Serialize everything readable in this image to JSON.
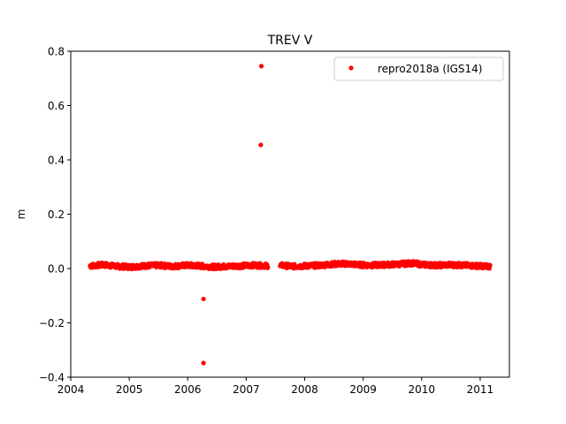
{
  "chart_data": {
    "type": "scatter",
    "title": "TREV V",
    "xlabel": "",
    "ylabel": "m",
    "xlim": [
      2004.0,
      2011.5
    ],
    "ylim": [
      -0.4,
      0.8
    ],
    "x_ticks": [
      2004,
      2005,
      2006,
      2007,
      2008,
      2009,
      2010,
      2011
    ],
    "x_tick_labels": [
      "2004",
      "2005",
      "2006",
      "2007",
      "2008",
      "2009",
      "2010",
      "2011"
    ],
    "y_ticks": [
      -0.4,
      -0.2,
      0.0,
      0.2,
      0.4,
      0.6,
      0.8
    ],
    "y_tick_labels": [
      "−0.4",
      "−0.2",
      "0.0",
      "0.2",
      "0.4",
      "0.6",
      "0.8"
    ],
    "grid": false,
    "legend_position": "top-right",
    "series": [
      {
        "name": "repro2018a (IGS14)",
        "color": "#ff0000",
        "marker": "circle",
        "segments": [
          {
            "x_start": 2004.33,
            "x_end": 2007.37,
            "y": [
              0.01,
              0.014,
              0.008,
              0.006,
              0.01,
              0.012,
              0.008,
              0.012,
              0.01,
              0.006,
              0.008,
              0.01,
              0.012,
              0.01
            ]
          },
          {
            "x_start": 2007.58,
            "x_end": 2011.17,
            "y": [
              0.012,
              0.008,
              0.01,
              0.012,
              0.016,
              0.018,
              0.014,
              0.012,
              0.014,
              0.016,
              0.02,
              0.014,
              0.012,
              0.014,
              0.012,
              0.01,
              0.008
            ]
          }
        ],
        "outliers": [
          {
            "x": 2006.27,
            "y": -0.112
          },
          {
            "x": 2006.27,
            "y": -0.348
          },
          {
            "x": 2007.25,
            "y": 0.455
          },
          {
            "x": 2007.26,
            "y": 0.745
          }
        ]
      }
    ]
  }
}
